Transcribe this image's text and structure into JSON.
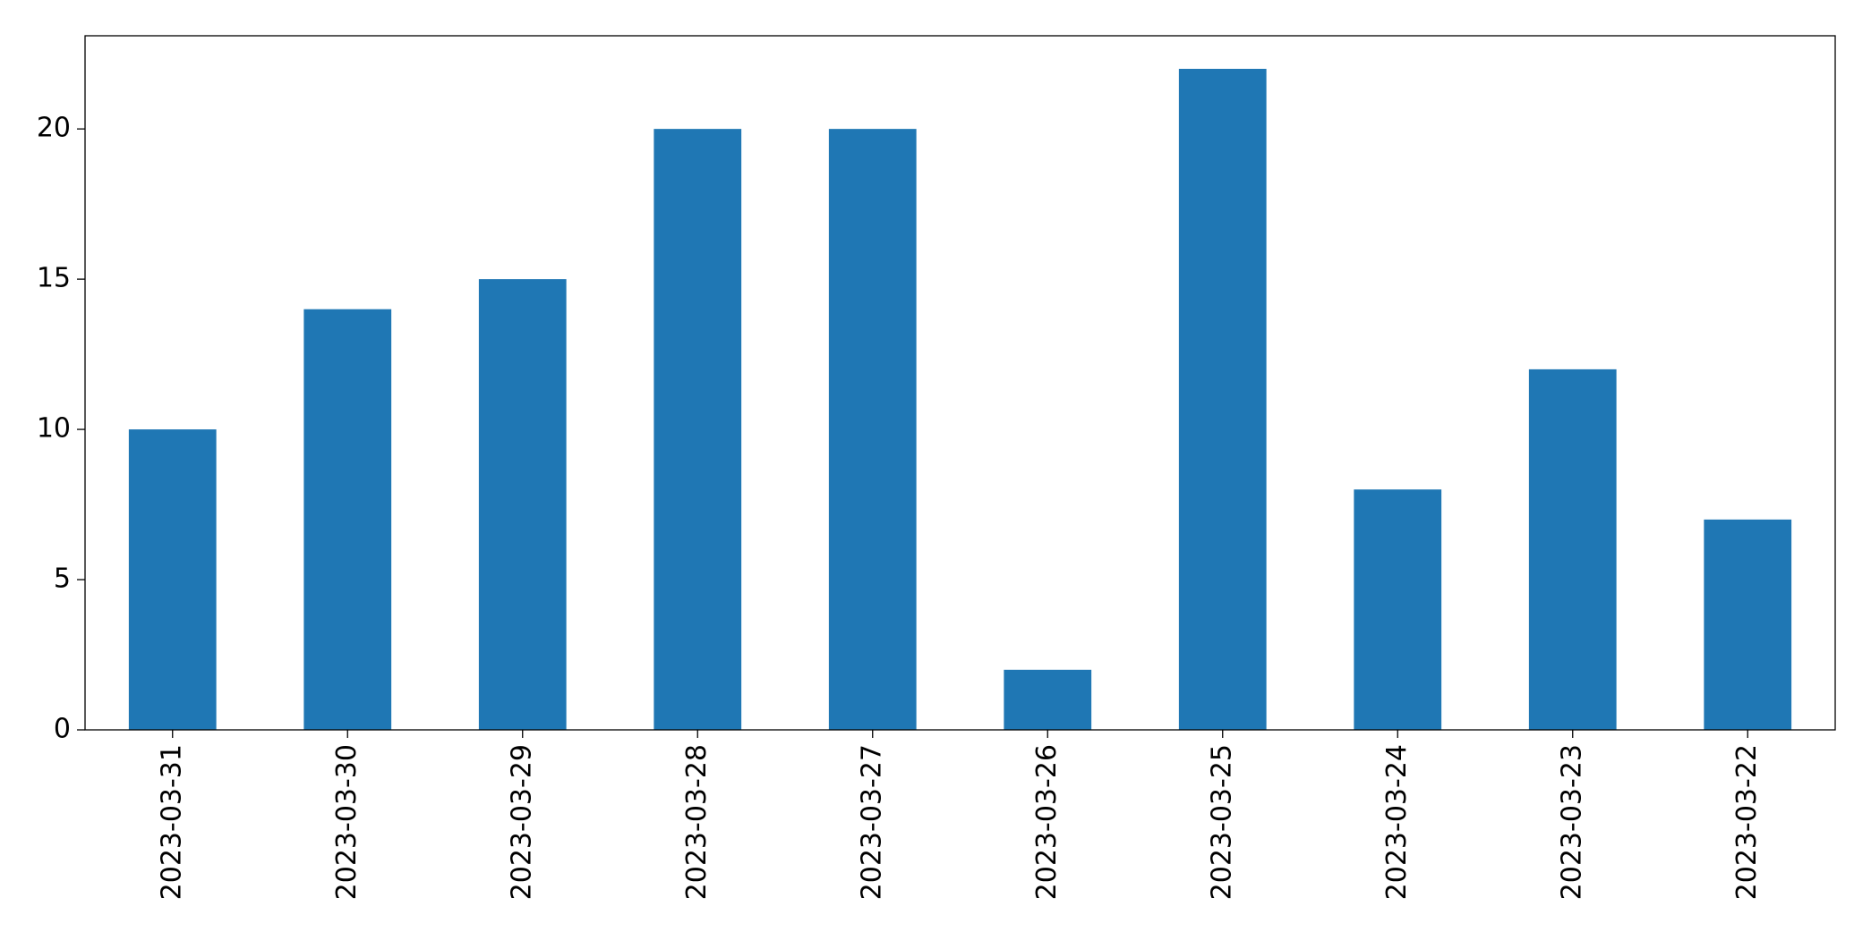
{
  "chart_data": {
    "type": "bar",
    "categories": [
      "2023-03-31",
      "2023-03-30",
      "2023-03-29",
      "2023-03-28",
      "2023-03-27",
      "2023-03-26",
      "2023-03-25",
      "2023-03-24",
      "2023-03-23",
      "2023-03-22"
    ],
    "values": [
      10,
      14,
      15,
      20,
      20,
      2,
      22,
      8,
      12,
      7
    ],
    "color": "#1f77b4",
    "ylim": [
      0,
      23.1
    ],
    "yticks": [
      0,
      5,
      10,
      15,
      20
    ],
    "grid": false
  }
}
